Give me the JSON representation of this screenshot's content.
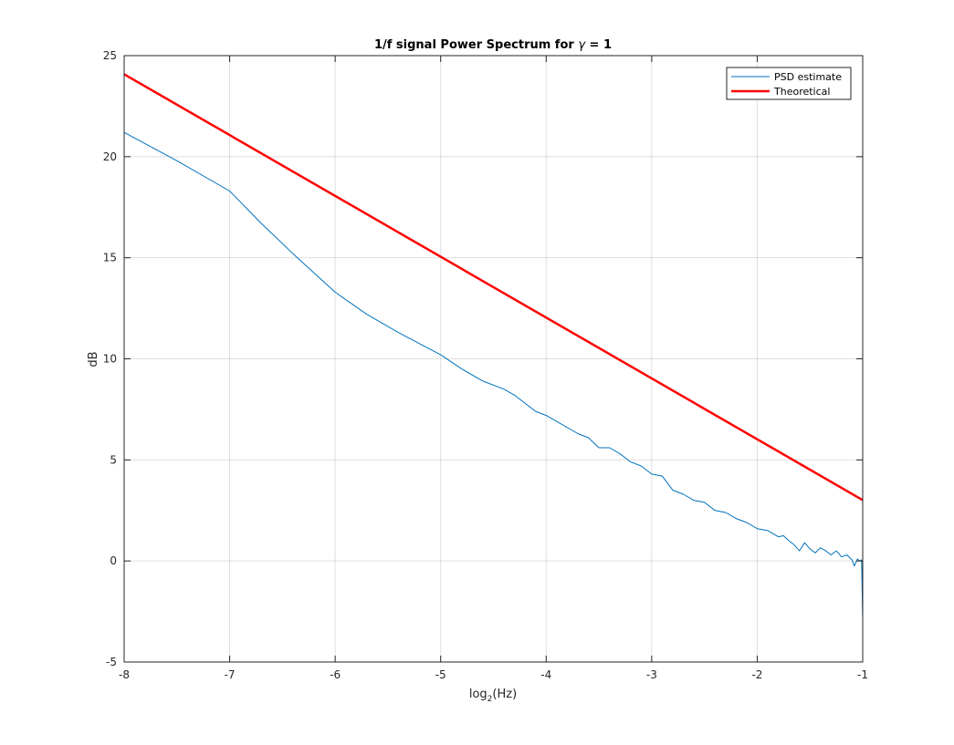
{
  "chart_data": {
    "type": "line",
    "title_prefix": "1/f signal Power Spectrum for ",
    "title_symbol": "γ",
    "title_suffix": " = 1",
    "xlabel_base": "log",
    "xlabel_sub": "2",
    "xlabel_rest": "(Hz)",
    "ylabel": "dB",
    "xlim": [
      -8,
      -1
    ],
    "ylim": [
      -5,
      25
    ],
    "xticks": [
      -8,
      -7,
      -6,
      -5,
      -4,
      -3,
      -2,
      -1
    ],
    "yticks": [
      -5,
      0,
      5,
      10,
      15,
      20,
      25
    ],
    "xtick_labels": [
      "-8",
      "-7",
      "-6",
      "-5",
      "-4",
      "-3",
      "-2",
      "-1"
    ],
    "ytick_labels": [
      "-5",
      "0",
      "5",
      "10",
      "15",
      "20",
      "25"
    ],
    "grid": true,
    "legend_position": "top-right",
    "series": [
      {
        "name": "PSD estimate",
        "color": "#0072BD",
        "x": [
          -8,
          -7.5,
          -7,
          -6.7,
          -6.4,
          -6.0,
          -5.7,
          -5.4,
          -5.0,
          -4.8,
          -4.6,
          -4.4,
          -4.3,
          -4.1,
          -4.0,
          -3.9,
          -3.7,
          -3.6,
          -3.5,
          -3.4,
          -3.3,
          -3.2,
          -3.1,
          -3.0,
          -2.9,
          -2.8,
          -2.7,
          -2.6,
          -2.5,
          -2.4,
          -2.3,
          -2.2,
          -2.1,
          -2.0,
          -1.9,
          -1.8,
          -1.75,
          -1.7,
          -1.65,
          -1.6,
          -1.55,
          -1.5,
          -1.45,
          -1.4,
          -1.35,
          -1.3,
          -1.25,
          -1.2,
          -1.15,
          -1.1,
          -1.08,
          -1.05,
          -1.03,
          -1.01,
          -1.0
        ],
        "values": [
          21.2,
          19.8,
          18.3,
          16.7,
          15.2,
          13.3,
          12.2,
          11.3,
          10.2,
          9.5,
          8.9,
          8.5,
          8.2,
          7.4,
          7.2,
          6.9,
          6.3,
          6.1,
          5.6,
          5.6,
          5.3,
          4.9,
          4.7,
          4.3,
          4.2,
          3.5,
          3.3,
          3.0,
          2.9,
          2.5,
          2.4,
          2.1,
          1.9,
          1.6,
          1.5,
          1.2,
          1.25,
          1.0,
          0.8,
          0.5,
          0.9,
          0.6,
          0.4,
          0.65,
          0.5,
          0.3,
          0.5,
          0.2,
          0.3,
          0.05,
          -0.25,
          0.1,
          0.0,
          0.05,
          -2.9
        ]
      },
      {
        "name": "Theoretical",
        "color": "#FF0000",
        "x": [
          -8,
          -1
        ],
        "values": [
          24.08,
          3.01
        ]
      }
    ]
  }
}
